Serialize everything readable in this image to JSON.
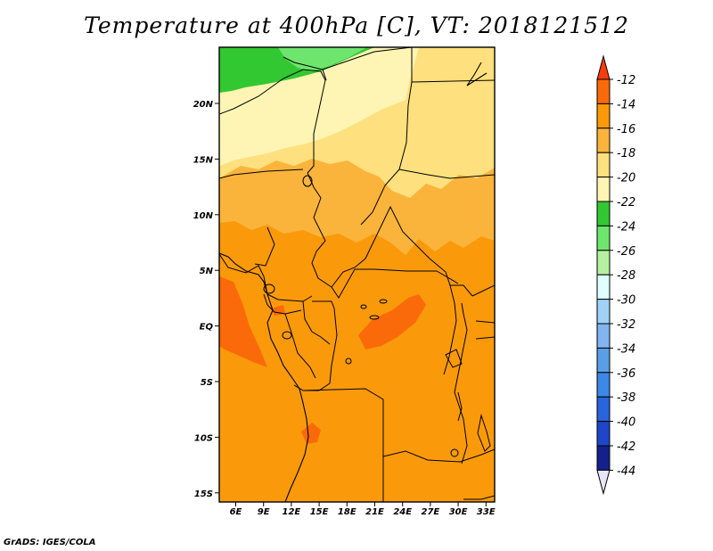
{
  "title": "Temperature at 400hPa [C], VT: 2018121512",
  "footer": "GrADS: IGES/COLA",
  "map": {
    "lon_range": [
      3,
      33
    ],
    "lat_range": [
      -16,
      25
    ],
    "lon_ticks": [
      "6E",
      "9E",
      "12E",
      "15E",
      "18E",
      "21E",
      "24E",
      "27E",
      "30E",
      "33E"
    ],
    "lat_ticks": [
      "20N",
      "15N",
      "10N",
      "5N",
      "EQ",
      "5S",
      "10S",
      "15S"
    ]
  },
  "colorbar": {
    "labels": [
      "-12",
      "-14",
      "-16",
      "-18",
      "-20",
      "-22",
      "-24",
      "-26",
      "-28",
      "-30",
      "-32",
      "-34",
      "-36",
      "-38",
      "-40",
      "-42",
      "-44"
    ],
    "colors": [
      "#fa6a0a",
      "#fa9a0a",
      "#fab43c",
      "#fee07e",
      "#fef4b4",
      "#32c832",
      "#6ee66e",
      "#b4f0a0",
      "#e0fefe",
      "#a0d2f8",
      "#82b4f0",
      "#5a9ee6",
      "#3c88e6",
      "#2864dc",
      "#1e46c8",
      "#14208c"
    ],
    "top_arrow_color": "#fa3c0a",
    "bottom_arrow_color": "#e6e6fa"
  }
}
